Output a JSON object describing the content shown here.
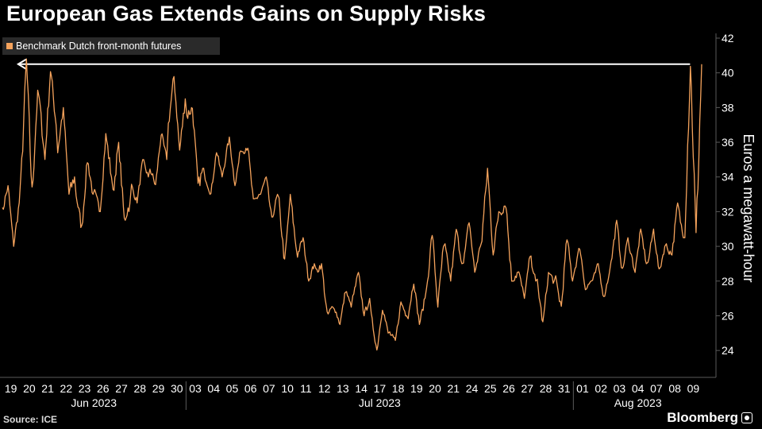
{
  "title": "European Gas Extends Gains on Supply Risks",
  "source": "Source: ICE",
  "brand": "Bloomberg",
  "colors": {
    "series": "#f5a35c",
    "background": "#000000",
    "text": "#ffffff",
    "grid": "#5a5a5a"
  },
  "chart_data": {
    "type": "line",
    "title": "European Gas Extends Gains on Supply Risks",
    "ylabel": "Euros a megawatt-hour",
    "ylim": [
      23,
      42
    ],
    "yticks": [
      24,
      26,
      28,
      30,
      32,
      34,
      36,
      38,
      40,
      42
    ],
    "grid": false,
    "legend": {
      "position": "top-left",
      "entries": [
        "Benchmark Dutch front-month futures"
      ]
    },
    "x_tick_labels": [
      "19",
      "20",
      "21",
      "22",
      "23",
      "26",
      "27",
      "28",
      "29",
      "30",
      "03",
      "04",
      "05",
      "06",
      "07",
      "10",
      "11",
      "12",
      "13",
      "14",
      "17",
      "18",
      "19",
      "20",
      "21",
      "24",
      "25",
      "26",
      "27",
      "28",
      "31",
      "01",
      "02",
      "03",
      "04",
      "07",
      "08",
      "09"
    ],
    "month_labels": [
      {
        "label": "Jun 2023",
        "from": 0,
        "to": 9
      },
      {
        "label": "Jul 2023",
        "from": 10,
        "to": 30
      },
      {
        "label": "Aug 2023",
        "from": 31,
        "to": 37
      }
    ],
    "annotation": {
      "type": "arrow",
      "description": "arrow pointing left from latest value back to June 20 peak",
      "value": 40.5
    },
    "series": [
      {
        "name": "Benchmark Dutch front-month futures",
        "x": [
          "2023-06-19",
          "2023-06-20",
          "2023-06-21",
          "2023-06-22",
          "2023-06-23",
          "2023-06-26",
          "2023-06-27",
          "2023-06-28",
          "2023-06-29",
          "2023-06-30",
          "2023-07-03",
          "2023-07-04",
          "2023-07-05",
          "2023-07-06",
          "2023-07-07",
          "2023-07-10",
          "2023-07-11",
          "2023-07-12",
          "2023-07-13",
          "2023-07-14",
          "2023-07-17",
          "2023-07-18",
          "2023-07-19",
          "2023-07-20",
          "2023-07-21",
          "2023-07-24",
          "2023-07-25",
          "2023-07-26",
          "2023-07-27",
          "2023-07-28",
          "2023-07-31",
          "2023-08-01",
          "2023-08-02",
          "2023-08-03",
          "2023-08-04",
          "2023-08-07",
          "2023-08-08",
          "2023-08-09"
        ],
        "open": [
          32.0,
          33.5,
          38.5,
          35.5,
          33.0,
          33.0,
          33.0,
          33.5,
          34.5,
          37.0,
          37.5,
          34.0,
          34.5,
          35.5,
          33.0,
          32.5,
          29.5,
          28.5,
          26.5,
          27.0,
          26.0,
          25.0,
          26.0,
          27.5,
          30.0,
          29.0,
          30.5,
          32.0,
          28.5,
          28.0,
          28.0,
          28.5,
          28.0,
          29.0,
          30.0,
          29.0,
          30.0,
          31.0
        ],
        "high": [
          33.5,
          40.8,
          40.2,
          38.0,
          35.0,
          36.5,
          36.0,
          35.0,
          36.5,
          39.8,
          38.0,
          35.5,
          36.3,
          35.8,
          34.0,
          33.0,
          30.5,
          29.0,
          27.5,
          28.5,
          26.5,
          26.8,
          28.0,
          30.8,
          31.0,
          31.5,
          34.5,
          32.5,
          29.5,
          28.5,
          30.5,
          30.0,
          29.0,
          31.5,
          31.0,
          31.0,
          32.5,
          40.6
        ],
        "low": [
          30.0,
          33.0,
          35.0,
          33.0,
          31.0,
          32.0,
          31.5,
          32.5,
          33.5,
          35.5,
          33.5,
          33.0,
          33.5,
          32.5,
          31.5,
          29.0,
          28.0,
          26.0,
          25.5,
          26.0,
          24.0,
          24.5,
          25.5,
          26.5,
          28.0,
          28.5,
          29.5,
          28.0,
          27.0,
          25.5,
          26.5,
          27.5,
          27.0,
          28.5,
          28.5,
          28.5,
          29.5,
          30.5
        ],
        "values": [
          32.5,
          39.0,
          37.0,
          34.0,
          33.0,
          34.0,
          32.5,
          34.0,
          35.0,
          38.5,
          34.5,
          34.0,
          35.5,
          33.0,
          33.0,
          30.0,
          29.0,
          26.5,
          26.5,
          27.0,
          25.0,
          26.0,
          27.0,
          30.0,
          29.0,
          30.0,
          32.0,
          28.5,
          28.0,
          28.0,
          28.0,
          28.0,
          28.5,
          30.5,
          29.0,
          30.0,
          30.5,
          40.5
        ]
      }
    ]
  }
}
